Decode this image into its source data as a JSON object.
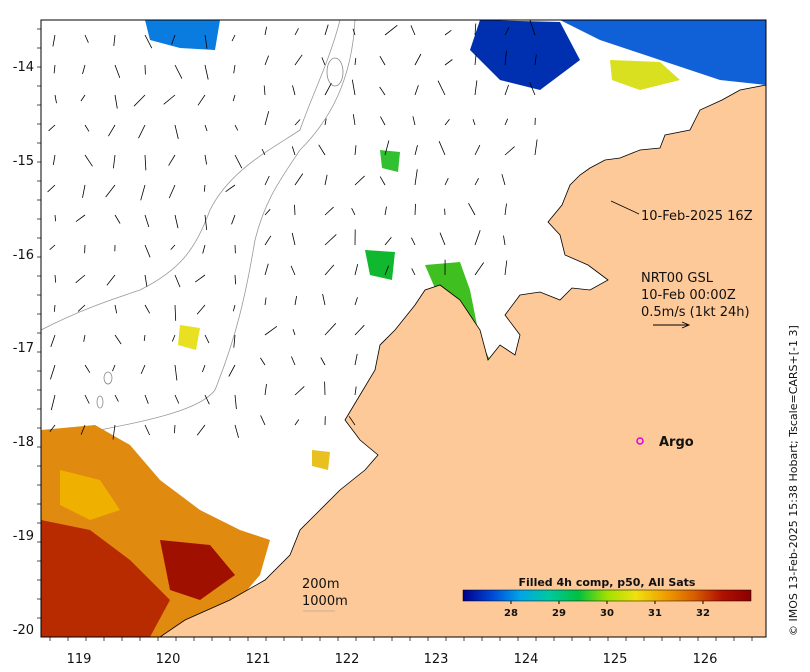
{
  "map": {
    "x_ticks": [
      "119",
      "120",
      "121",
      "122",
      "123",
      "124",
      "125",
      "126"
    ],
    "y_ticks": [
      "-14",
      "-15",
      "-16",
      "-17",
      "-18",
      "-19",
      "-20"
    ],
    "colors": {
      "land": "#fdc998",
      "ocean": "#ffffff",
      "frame": "#000000"
    }
  },
  "annotations": {
    "timestamp": "10-Feb-2025 16Z",
    "current_product": "NRT00 GSL",
    "current_date": "10-Feb 00:00Z",
    "current_scale": "0.5m/s (1kt 24h)",
    "depth_200": "200m",
    "depth_1000": "1000m"
  },
  "argo": {
    "label": "Argo",
    "marker_color": "#e000e0",
    "marker-icon": "circle-outline-icon"
  },
  "colorbar": {
    "title": "Filled 4h comp, p50, All Sats",
    "ticks": [
      "28",
      "29",
      "30",
      "31",
      "32"
    ],
    "stops": [
      "#00008b",
      "#0047d6",
      "#00a6e8",
      "#00c8a0",
      "#00c040",
      "#a0e000",
      "#f0e010",
      "#f0a000",
      "#d86000",
      "#b01000",
      "#8b0000"
    ]
  },
  "credit": "© IMOS 13-Feb-2025 15:38 Hobart; Tscale=CARS+[-1 3]"
}
